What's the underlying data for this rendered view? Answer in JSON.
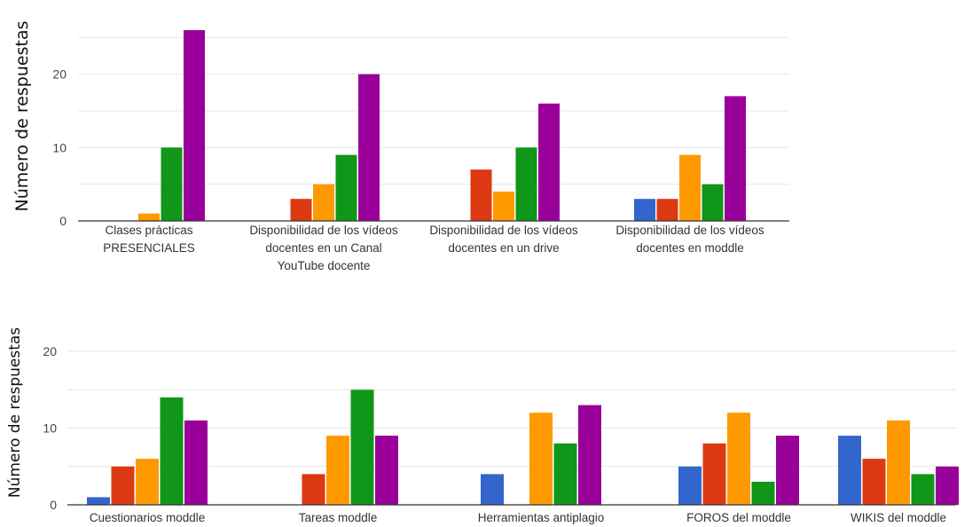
{
  "colors": [
    "#3366cc",
    "#dc3912",
    "#ff9900",
    "#109618",
    "#990099"
  ],
  "chart_data": [
    {
      "type": "bar",
      "ylabel": "Número de respuestas",
      "xlabel": "",
      "ylim": [
        0,
        25
      ],
      "yticks": [
        "0",
        "10",
        "20"
      ],
      "grid": true,
      "legend": "none",
      "categories": [
        [
          "Clases prácticas",
          "PRESENCIALES"
        ],
        [
          "Disponibilidad de los vídeos",
          "docentes en un Canal",
          "YouTube docente"
        ],
        [
          "Disponibilidad de los vídeos",
          "docentes en un drive"
        ],
        [
          "Disponibilidad de los vídeos",
          "docentes en moddle"
        ]
      ],
      "series": [
        {
          "values": [
            0,
            0,
            0,
            3
          ]
        },
        {
          "values": [
            0,
            3,
            7,
            3
          ]
        },
        {
          "values": [
            1,
            5,
            4,
            9
          ]
        },
        {
          "values": [
            10,
            9,
            10,
            5
          ]
        },
        {
          "values": [
            26,
            20,
            16,
            17
          ]
        }
      ]
    },
    {
      "type": "bar",
      "ylabel": "Número de respuestas",
      "xlabel": "",
      "ylim": [
        0,
        20
      ],
      "yticks": [
        "0",
        "10",
        "20"
      ],
      "grid": true,
      "legend": "none",
      "categories": [
        [
          "Cuestionarios moddle"
        ],
        [
          "Tareas moddle"
        ],
        [
          "Herramientas antiplagio"
        ],
        [
          "FOROS del moddle"
        ],
        [
          "WIKIS del moddle"
        ]
      ],
      "series": [
        {
          "values": [
            1,
            0,
            4,
            5,
            9
          ]
        },
        {
          "values": [
            5,
            4,
            0,
            8,
            6
          ]
        },
        {
          "values": [
            6,
            9,
            12,
            12,
            11
          ]
        },
        {
          "values": [
            14,
            15,
            8,
            3,
            4
          ]
        },
        {
          "values": [
            11,
            9,
            13,
            9,
            5
          ]
        }
      ]
    }
  ]
}
